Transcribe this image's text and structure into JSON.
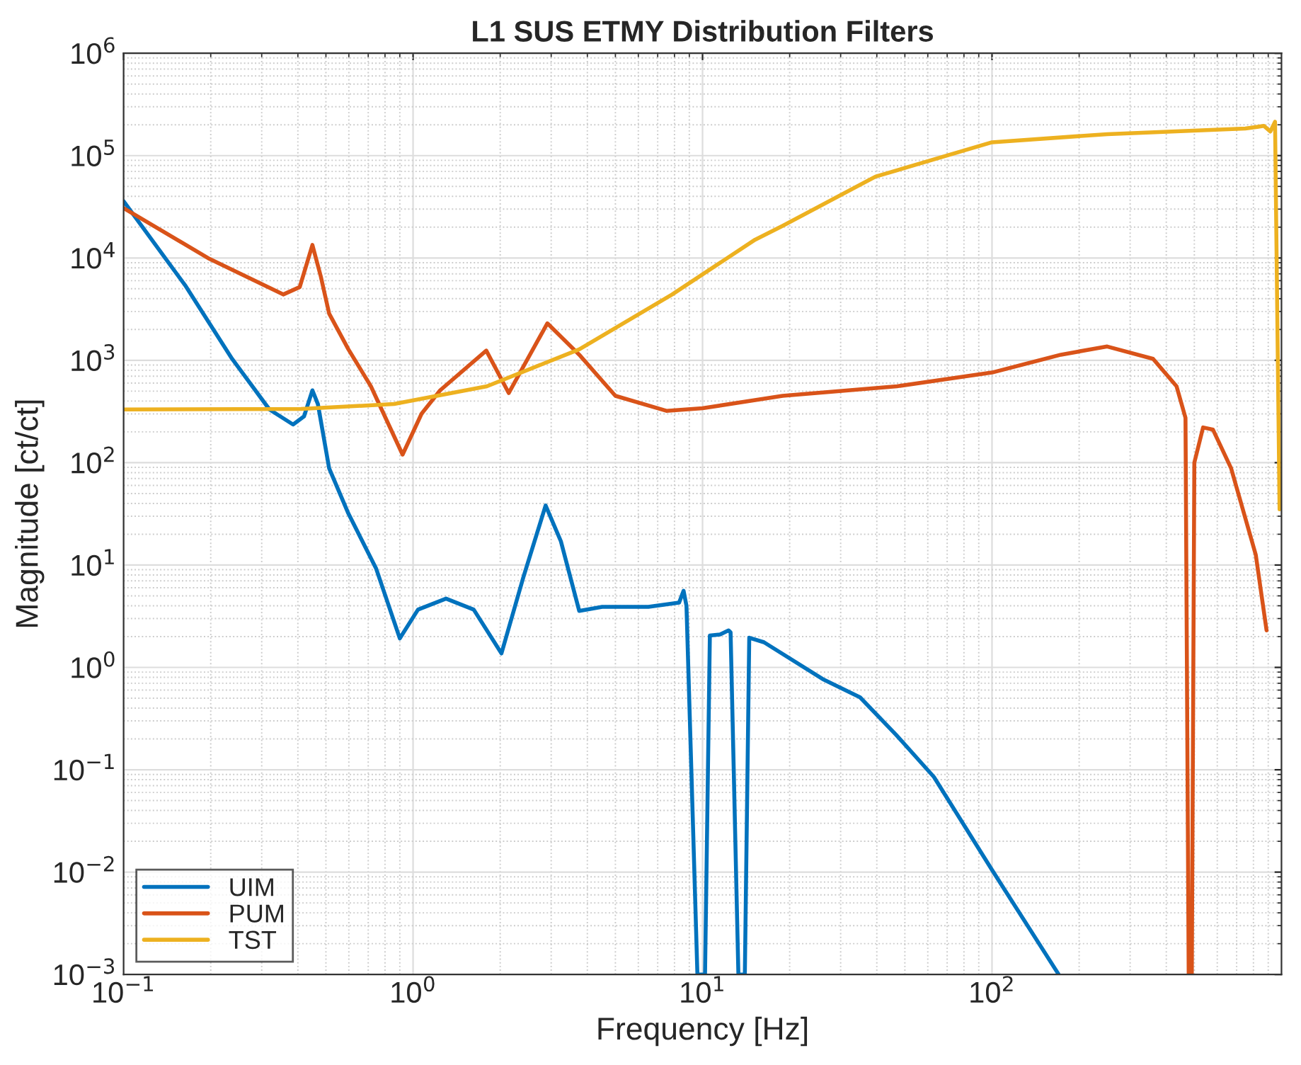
{
  "chart_data": {
    "type": "line",
    "title": "L1 SUS ETMY Distribution Filters",
    "xlabel": "Frequency [Hz]",
    "ylabel": "Magnitude [ct/ct]",
    "log": "xy",
    "grid": true,
    "legend": "bottom left",
    "line_style": "solid",
    "marker": "none",
    "xlim": [
      0.1,
      1000
    ],
    "ylim": [
      0.001,
      1000000
    ],
    "xticks": [
      {
        "value": 0.1,
        "label": "10$^{−1}$"
      },
      {
        "value": 1,
        "label": "10$^{0}$"
      },
      {
        "value": 10,
        "label": "10$^{1}$"
      },
      {
        "value": 100,
        "label": "10$^{2}$"
      }
    ],
    "yticks": [
      {
        "value": 0.001,
        "label": "10$^{−3}$"
      },
      {
        "value": 0.01,
        "label": "10$^{−2}$"
      },
      {
        "value": 0.1,
        "label": "10$^{−1}$"
      },
      {
        "value": 1,
        "label": "10$^{0}$"
      },
      {
        "value": 10,
        "label": "10$^{1}$"
      },
      {
        "value": 100,
        "label": "10$^{2}$"
      },
      {
        "value": 1000,
        "label": "10$^{3}$"
      },
      {
        "value": 10000,
        "label": "10$^{4}$"
      },
      {
        "value": 100000,
        "label": "10$^{5}$"
      },
      {
        "value": 1000000,
        "label": "10$^{6}$"
      }
    ],
    "series": [
      {
        "name": "UIM",
        "color": "#0072bd",
        "x": [
          0.1,
          0.164,
          0.237,
          0.319,
          0.385,
          0.42,
          0.449,
          0.469,
          0.513,
          0.598,
          0.745,
          0.9,
          1.04,
          1.3,
          1.62,
          2.02,
          2.4,
          2.87,
          3.24,
          3.75,
          4.5,
          6.5,
          8.3,
          8.6,
          8.8,
          9.6,
          10.2,
          10.6,
          11.5,
          12.3,
          12.5,
          13.3,
          14.0,
          14.5,
          16.3,
          26,
          35,
          46.6,
          63,
          100,
          170
        ],
        "values": [
          35800,
          5300,
          1035,
          331,
          236,
          283,
          509,
          374,
          88,
          31.8,
          9.27,
          1.92,
          3.67,
          4.7,
          3.67,
          1.37,
          7.46,
          38.2,
          17.1,
          3.56,
          3.9,
          3.9,
          4.3,
          5.6,
          4.0,
          0.001,
          0.001,
          2.05,
          2.1,
          2.3,
          2.2,
          0.001,
          0.001,
          1.95,
          1.76,
          0.77,
          0.51,
          0.22,
          0.085,
          0.0105,
          0.001
        ]
      },
      {
        "name": "PUM",
        "color": "#d95319",
        "x": [
          0.1,
          0.198,
          0.356,
          0.406,
          0.449,
          0.48,
          0.513,
          0.598,
          0.715,
          0.92,
          1.07,
          1.24,
          1.79,
          2.14,
          2.91,
          3.75,
          5.0,
          7.5,
          10,
          18.9,
          47,
          100,
          173,
          250,
          360,
          434,
          466,
          478,
          490,
          500,
          536,
          580,
          670,
          815,
          888
        ],
        "values": [
          30700,
          9800,
          4400,
          5200,
          13400,
          6600,
          2860,
          1280,
          558,
          120,
          301,
          509,
          1245,
          479,
          2300,
          1135,
          450,
          321,
          340,
          450,
          558,
          760,
          1135,
          1365,
          1035,
          558,
          275,
          0.001,
          0.001,
          100,
          221,
          210,
          88,
          12.6,
          2.3
        ]
      },
      {
        "name": "TST",
        "color": "#edb120",
        "x": [
          0.1,
          0.41,
          0.86,
          1.8,
          3.75,
          7.85,
          15.2,
          18.9,
          39.6,
          100,
          250,
          750,
          870,
          915,
          950,
          985
        ],
        "values": [
          331,
          335,
          374,
          558,
          1280,
          4400,
          15100,
          20600,
          62400,
          135000,
          162000,
          184000,
          195000,
          172000,
          214000,
          35
        ]
      }
    ]
  }
}
